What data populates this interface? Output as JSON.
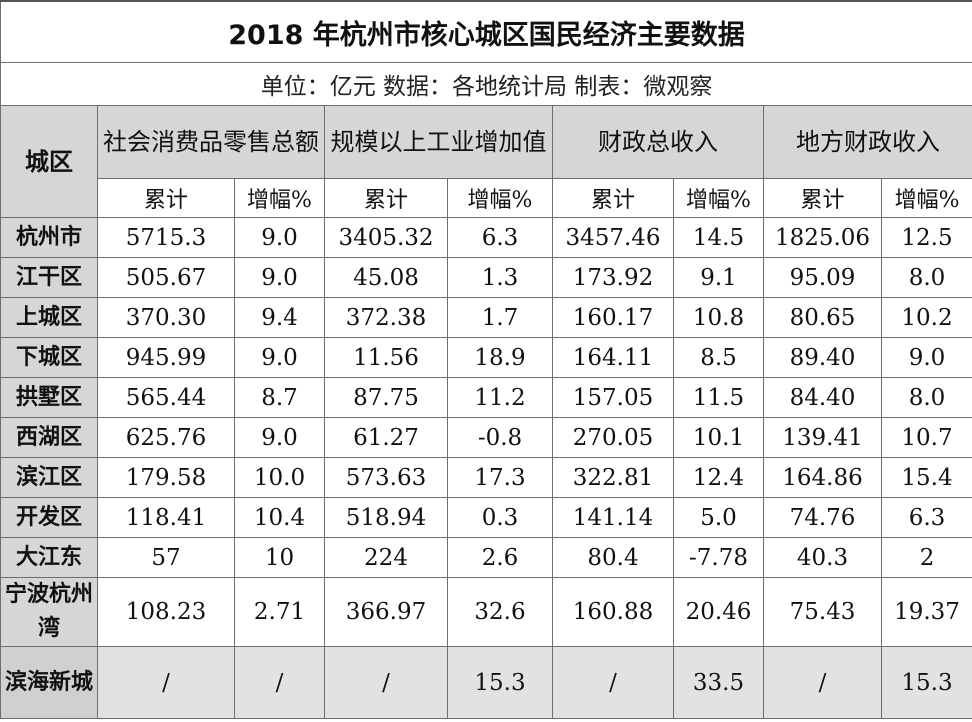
{
  "title": "2018 年杭州市核心城区国民经济主要数据",
  "subtitle": "单位：亿元  数据：各地统计局  制表：微观察",
  "headers": {
    "district": "城区",
    "groups": [
      {
        "label": "社会消费品零售总额"
      },
      {
        "label": "规模以上工业增加值"
      },
      {
        "label": "财政总收入"
      },
      {
        "label": "地方财政收入"
      }
    ],
    "sub_total": "累计",
    "sub_growth": "增幅%"
  },
  "rows": [
    {
      "name": "杭州市",
      "values": [
        "5715.3",
        "9.0",
        "3405.32",
        "6.3",
        "3457.46",
        "14.5",
        "1825.06",
        "12.5"
      ]
    },
    {
      "name": "江干区",
      "values": [
        "505.67",
        "9.0",
        "45.08",
        "1.3",
        "173.92",
        "9.1",
        "95.09",
        "8.0"
      ]
    },
    {
      "name": "上城区",
      "values": [
        "370.30",
        "9.4",
        "372.38",
        "1.7",
        "160.17",
        "10.8",
        "80.65",
        "10.2"
      ]
    },
    {
      "name": "下城区",
      "values": [
        "945.99",
        "9.0",
        "11.56",
        "18.9",
        "164.11",
        "8.5",
        "89.40",
        "9.0"
      ]
    },
    {
      "name": "拱墅区",
      "values": [
        "565.44",
        "8.7",
        "87.75",
        "11.2",
        "157.05",
        "11.5",
        "84.40",
        "8.0"
      ]
    },
    {
      "name": "西湖区",
      "values": [
        "625.76",
        "9.0",
        "61.27",
        "-0.8",
        "270.05",
        "10.1",
        "139.41",
        "10.7"
      ]
    },
    {
      "name": "滨江区",
      "values": [
        "179.58",
        "10.0",
        "573.63",
        "17.3",
        "322.81",
        "12.4",
        "164.86",
        "15.4"
      ]
    },
    {
      "name": "开发区",
      "values": [
        "118.41",
        "10.4",
        "518.94",
        "0.3",
        "141.14",
        "5.0",
        "74.76",
        "6.3"
      ]
    },
    {
      "name": "大江东",
      "values": [
        "57",
        "10",
        "224",
        "2.6",
        "80.4",
        "-7.78",
        "40.3",
        "2"
      ]
    },
    {
      "name": "宁波杭州湾",
      "values": [
        "108.23",
        "2.71",
        "366.97",
        "32.6",
        "160.88",
        "20.46",
        "75.43",
        "19.37"
      ]
    },
    {
      "name": "滨海新城",
      "values": [
        "/",
        "/",
        "/",
        "15.3",
        "/",
        "33.5",
        "/",
        "15.3"
      ]
    }
  ]
}
